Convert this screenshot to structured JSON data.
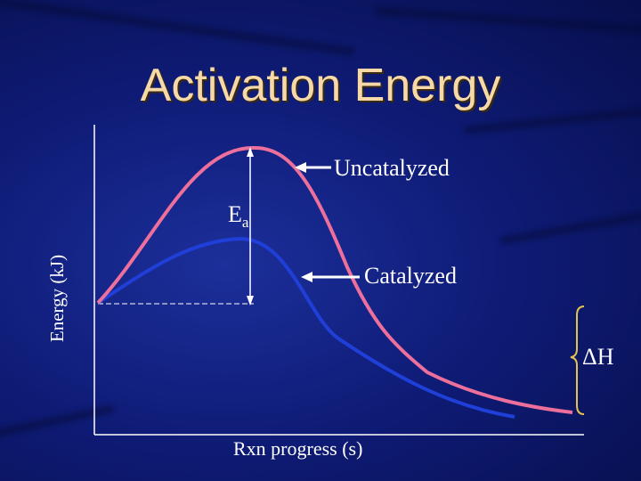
{
  "slide": {
    "title": "Activation Energy",
    "background_color": "#0f1c78",
    "title_color": "#f6d9a6"
  },
  "diagram": {
    "y_axis_label": "Energy (kJ)",
    "x_axis_label": "Rxn progress (s)",
    "uncatalyzed_label": "Uncatalyzed",
    "catalyzed_label": "Catalyzed",
    "activation_label": "E",
    "activation_subscript": "a",
    "enthalpy_label": "ΔH",
    "uncatalyzed_color": "#ec6f9c",
    "catalyzed_color": "#1f3fd8",
    "brace_color": "#e8c24e"
  }
}
